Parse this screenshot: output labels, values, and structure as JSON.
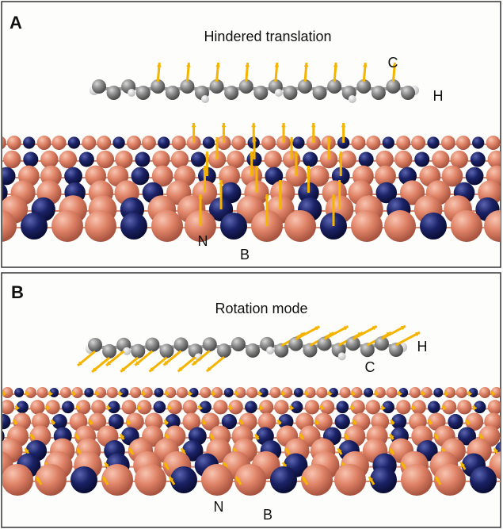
{
  "panels": [
    {
      "letter": "A",
      "title": "Hindered translation",
      "labels": {
        "C": "C",
        "H": "H",
        "N": "N",
        "B": "B"
      }
    },
    {
      "letter": "B",
      "title": "Rotation mode",
      "labels": {
        "C": "C",
        "H": "H",
        "N": "N",
        "B": "B"
      }
    }
  ]
}
